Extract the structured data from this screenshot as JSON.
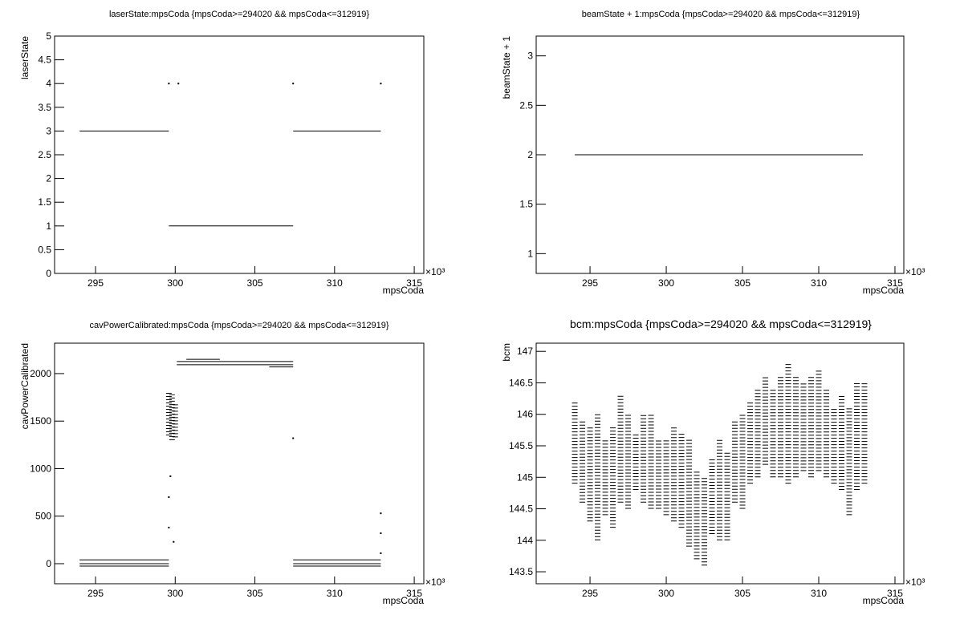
{
  "chart_data": [
    {
      "type": "scatter",
      "title": "laserState:mpsCoda {mpsCoda>=294020 && mpsCoda<=312919}",
      "x_label": "mpsCoda",
      "y_label": "laserState",
      "x_multiplier": "×10³",
      "xlim": [
        292.43,
        315.6
      ],
      "xticks": [
        295,
        300,
        305,
        310,
        315
      ],
      "ylim": [
        0,
        5
      ],
      "yticks": [
        0,
        0.5,
        1,
        1.5,
        2,
        2.5,
        3,
        3.5,
        4,
        4.5,
        5
      ],
      "color": "#000000",
      "runs": [
        {
          "x": [
            294.0,
            299.6
          ],
          "y": 3
        },
        {
          "x": [
            299.6,
            307.4
          ],
          "y": 1
        },
        {
          "x": [
            307.4,
            312.9
          ],
          "y": 3
        }
      ],
      "points": {
        "x": [
          299.6,
          300.2,
          307.4,
          312.9
        ],
        "y": [
          4,
          4,
          4,
          4
        ]
      }
    },
    {
      "type": "scatter",
      "title": "beamState + 1:mpsCoda {mpsCoda>=294020 && mpsCoda<=312919}",
      "x_label": "mpsCoda",
      "y_label": "beamState + 1",
      "x_multiplier": "×10³",
      "xlim": [
        291.47,
        315.58
      ],
      "xticks": [
        295,
        300,
        305,
        310,
        315
      ],
      "ylim": [
        0.8,
        3.2
      ],
      "yticks": [
        1,
        1.5,
        2,
        2.5,
        3
      ],
      "color": "#000000",
      "runs": [
        {
          "x": [
            294.0,
            312.9
          ],
          "y": 2
        }
      ]
    },
    {
      "type": "scatter",
      "title": "cavPowerCalibrated:mpsCoda {mpsCoda>=294020 && mpsCoda<=312919}",
      "x_label": "mpsCoda",
      "y_label": "cavPowerCalibrated",
      "x_multiplier": "×10³",
      "xlim": [
        292.43,
        315.6
      ],
      "xticks": [
        295,
        300,
        305,
        310,
        315
      ],
      "ylim": [
        -211,
        2320
      ],
      "yticks": [
        0,
        500,
        1000,
        1500,
        2000
      ],
      "color": "#000000",
      "runs": [
        {
          "x": [
            294.0,
            299.6
          ],
          "y": 40
        },
        {
          "x": [
            294.0,
            299.6
          ],
          "y": 0
        },
        {
          "x": [
            294.0,
            299.6
          ],
          "y": -25
        },
        {
          "x": [
            307.4,
            312.9
          ],
          "y": 40
        },
        {
          "x": [
            307.4,
            312.9
          ],
          "y": 0
        },
        {
          "x": [
            307.4,
            312.9
          ],
          "y": -25
        },
        {
          "x": [
            300.1,
            307.4
          ],
          "y": 2127
        },
        {
          "x": [
            300.1,
            307.4
          ],
          "y": 2093
        },
        {
          "x": [
            300.7,
            302.8
          ],
          "y": 2150
        },
        {
          "x": [
            305.9,
            307.4
          ],
          "y": 2070
        }
      ],
      "points": {
        "x": [
          299.7,
          299.6,
          299.6,
          299.9,
          307.4,
          312.9,
          312.9,
          312.9
        ],
        "y": [
          920,
          700,
          380,
          230,
          1320,
          530,
          320,
          110
        ]
      },
      "bands": {
        "x": [
          299.6,
          299.8,
          300.0
        ],
        "low": [
          1350,
          1300,
          1330
        ],
        "high": [
          1800,
          1780,
          1700
        ]
      }
    },
    {
      "type": "scatter",
      "title": "bcm:mpsCoda {mpsCoda>=294020 && mpsCoda<=312919}",
      "x_label": "mpsCoda",
      "y_label": "bcm",
      "x_multiplier": "×10³",
      "xlim": [
        291.47,
        315.58
      ],
      "xticks": [
        295,
        300,
        305,
        310,
        315
      ],
      "ylim": [
        143.31,
        147.13
      ],
      "yticks": [
        143.5,
        144,
        144.5,
        145,
        145.5,
        146,
        146.5,
        147
      ],
      "color": "#000000",
      "bands": {
        "x": [
          294.0,
          294.5,
          295.0,
          295.5,
          296.0,
          296.5,
          297.0,
          297.5,
          298.0,
          298.5,
          299.0,
          299.5,
          300.0,
          300.5,
          301.0,
          301.5,
          302.0,
          302.5,
          303.0,
          303.5,
          304.0,
          304.5,
          305.0,
          305.5,
          306.0,
          306.5,
          307.0,
          307.5,
          308.0,
          308.5,
          309.0,
          309.5,
          310.0,
          310.5,
          311.0,
          311.5,
          312.0,
          312.5,
          313.0
        ],
        "low": [
          144.9,
          144.6,
          144.3,
          144.0,
          144.4,
          144.2,
          144.6,
          144.5,
          144.8,
          144.6,
          144.5,
          144.5,
          144.4,
          144.3,
          144.2,
          143.9,
          143.7,
          143.6,
          144.1,
          144.0,
          144.0,
          144.6,
          144.5,
          144.9,
          145.0,
          145.2,
          145.0,
          145.0,
          144.9,
          145.0,
          145.1,
          145.0,
          145.1,
          145.0,
          144.9,
          144.8,
          144.4,
          144.8,
          144.9
        ],
        "high": [
          146.2,
          145.9,
          145.8,
          146.0,
          145.6,
          145.8,
          146.3,
          146.0,
          145.7,
          146.0,
          146.0,
          145.6,
          145.6,
          145.8,
          145.7,
          145.6,
          145.1,
          145.0,
          145.3,
          145.6,
          145.4,
          145.9,
          146.0,
          146.2,
          146.4,
          146.6,
          146.4,
          146.6,
          146.8,
          146.6,
          146.5,
          146.6,
          146.7,
          146.4,
          146.1,
          146.3,
          146.1,
          146.5,
          146.5
        ]
      }
    }
  ]
}
